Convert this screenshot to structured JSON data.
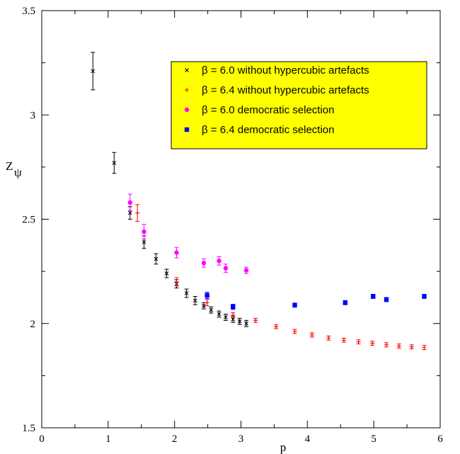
{
  "chart_data": {
    "type": "scatter",
    "xlabel": "p",
    "ylabel": "Z",
    "ylabel_subscript": "ψ",
    "xlim": [
      0,
      6
    ],
    "ylim": [
      1.5,
      3.5
    ],
    "xticks": [
      "0",
      "1",
      "2",
      "3",
      "4",
      "5",
      "6"
    ],
    "yticks": [
      "1.5",
      "2",
      "2.5",
      "3",
      "3.5"
    ],
    "grid": false,
    "legend_position": "top-right",
    "legend_background": "#ffff00",
    "series": [
      {
        "name": "β = 6.0  without hypercubic artefacts",
        "color": "#000000",
        "marker": "x",
        "points": [
          {
            "x": 0.77,
            "y": 3.21,
            "err": 0.09
          },
          {
            "x": 1.09,
            "y": 2.77,
            "err": 0.05
          },
          {
            "x": 1.33,
            "y": 2.53,
            "err": 0.03
          },
          {
            "x": 1.54,
            "y": 2.39,
            "err": 0.03
          },
          {
            "x": 1.72,
            "y": 2.31,
            "err": 0.025
          },
          {
            "x": 1.88,
            "y": 2.24,
            "err": 0.02
          },
          {
            "x": 2.03,
            "y": 2.19,
            "err": 0.02
          },
          {
            "x": 2.18,
            "y": 2.145,
            "err": 0.02
          },
          {
            "x": 2.31,
            "y": 2.11,
            "err": 0.02
          },
          {
            "x": 2.44,
            "y": 2.085,
            "err": 0.015
          },
          {
            "x": 2.55,
            "y": 2.065,
            "err": 0.015
          },
          {
            "x": 2.67,
            "y": 2.045,
            "err": 0.015
          },
          {
            "x": 2.77,
            "y": 2.03,
            "err": 0.015
          },
          {
            "x": 2.88,
            "y": 2.02,
            "err": 0.015
          },
          {
            "x": 2.98,
            "y": 2.01,
            "err": 0.015
          },
          {
            "x": 3.08,
            "y": 2.0,
            "err": 0.015
          }
        ]
      },
      {
        "name": "β = 6.4  without hypercubic artefacts",
        "color": "#ff0000",
        "marker": "+",
        "points": [
          {
            "x": 1.44,
            "y": 2.53,
            "err": 0.04
          },
          {
            "x": 2.03,
            "y": 2.2,
            "err": 0.02
          },
          {
            "x": 2.49,
            "y": 2.1,
            "err": 0.015
          },
          {
            "x": 2.88,
            "y": 2.04,
            "err": 0.012
          },
          {
            "x": 3.22,
            "y": 2.015,
            "err": 0.01
          },
          {
            "x": 3.53,
            "y": 1.985,
            "err": 0.01
          },
          {
            "x": 3.81,
            "y": 1.962,
            "err": 0.01
          },
          {
            "x": 4.07,
            "y": 1.945,
            "err": 0.01
          },
          {
            "x": 4.32,
            "y": 1.93,
            "err": 0.01
          },
          {
            "x": 4.55,
            "y": 1.92,
            "err": 0.01
          },
          {
            "x": 4.77,
            "y": 1.912,
            "err": 0.01
          },
          {
            "x": 4.98,
            "y": 1.905,
            "err": 0.01
          },
          {
            "x": 5.19,
            "y": 1.898,
            "err": 0.01
          },
          {
            "x": 5.38,
            "y": 1.892,
            "err": 0.01
          },
          {
            "x": 5.57,
            "y": 1.888,
            "err": 0.01
          },
          {
            "x": 5.76,
            "y": 1.885,
            "err": 0.01
          }
        ]
      },
      {
        "name": "β = 6.0  democratic selection",
        "color": "#ff00ff",
        "marker": "circle",
        "points": [
          {
            "x": 1.33,
            "y": 2.58,
            "err": 0.04
          },
          {
            "x": 1.54,
            "y": 2.44,
            "err": 0.035
          },
          {
            "x": 2.03,
            "y": 2.34,
            "err": 0.025
          },
          {
            "x": 2.44,
            "y": 2.29,
            "err": 0.02
          },
          {
            "x": 2.67,
            "y": 2.3,
            "err": 0.02
          },
          {
            "x": 2.77,
            "y": 2.265,
            "err": 0.02
          },
          {
            "x": 3.08,
            "y": 2.255,
            "err": 0.015
          }
        ]
      },
      {
        "name": "β = 6.4  democratic selection",
        "color": "#0000ff",
        "marker": "square",
        "points": [
          {
            "x": 2.49,
            "y": 2.135,
            "err": 0.015
          },
          {
            "x": 2.88,
            "y": 2.08,
            "err": 0.012
          },
          {
            "x": 3.81,
            "y": 2.088,
            "err": 0.01
          },
          {
            "x": 4.57,
            "y": 2.1,
            "err": 0.01
          },
          {
            "x": 4.99,
            "y": 2.13,
            "err": 0.01
          },
          {
            "x": 5.19,
            "y": 2.115,
            "err": 0.01
          },
          {
            "x": 5.76,
            "y": 2.13,
            "err": 0.01
          }
        ]
      }
    ]
  }
}
